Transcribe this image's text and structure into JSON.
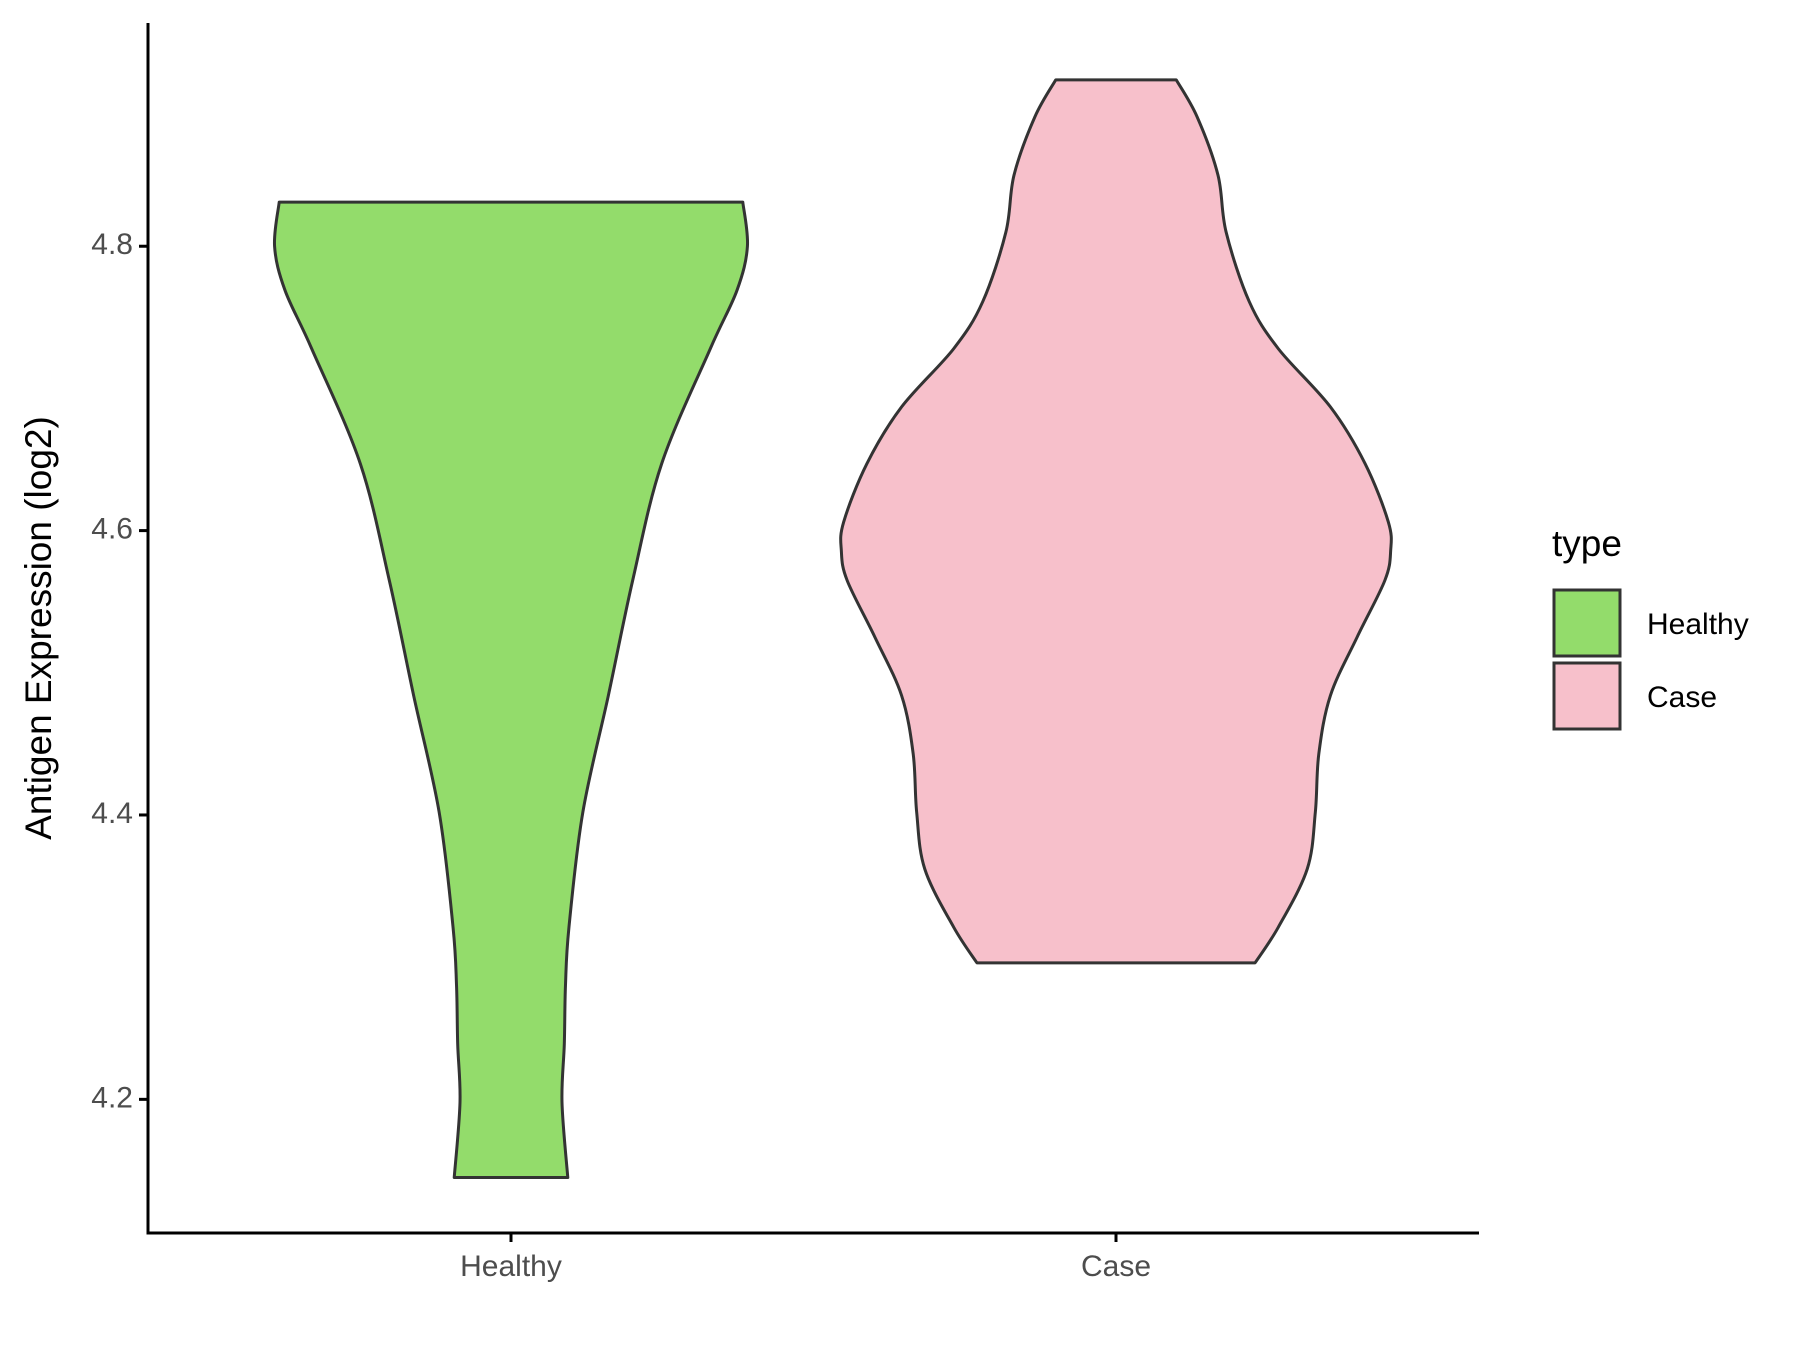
{
  "chart_data": {
    "type": "violin",
    "y_label": "Antigen Expression (log2)",
    "legend_title": "type",
    "legend": "right",
    "categories": [
      "Healthy",
      "Case"
    ],
    "series": [
      {
        "name": "Healthy",
        "color": "#93dc6b",
        "y": [
          4.831,
          4.8,
          4.769,
          4.728,
          4.647,
          4.565,
          4.484,
          4.402,
          4.321,
          4.28,
          4.239,
          4.198,
          4.145
        ],
        "density": [
          2.0,
          2.04,
          1.95,
          1.72,
          1.3,
          1.05,
          0.84,
          0.62,
          0.5,
          0.47,
          0.46,
          0.44,
          0.49
        ]
      },
      {
        "name": "Case",
        "color": "#f7c0cb",
        "y": [
          4.917,
          4.891,
          4.85,
          4.81,
          4.761,
          4.728,
          4.687,
          4.647,
          4.606,
          4.586,
          4.565,
          4.525,
          4.484,
          4.443,
          4.402,
          4.362,
          4.321,
          4.296
        ],
        "density": [
          0.52,
          0.7,
          0.88,
          0.95,
          1.15,
          1.4,
          1.85,
          2.15,
          2.35,
          2.37,
          2.32,
          2.08,
          1.85,
          1.75,
          1.72,
          1.65,
          1.4,
          1.2
        ]
      }
    ],
    "ylim": [
      4.106,
      4.957
    ],
    "yticks": [
      4.2,
      4.4,
      4.6,
      4.8
    ]
  }
}
